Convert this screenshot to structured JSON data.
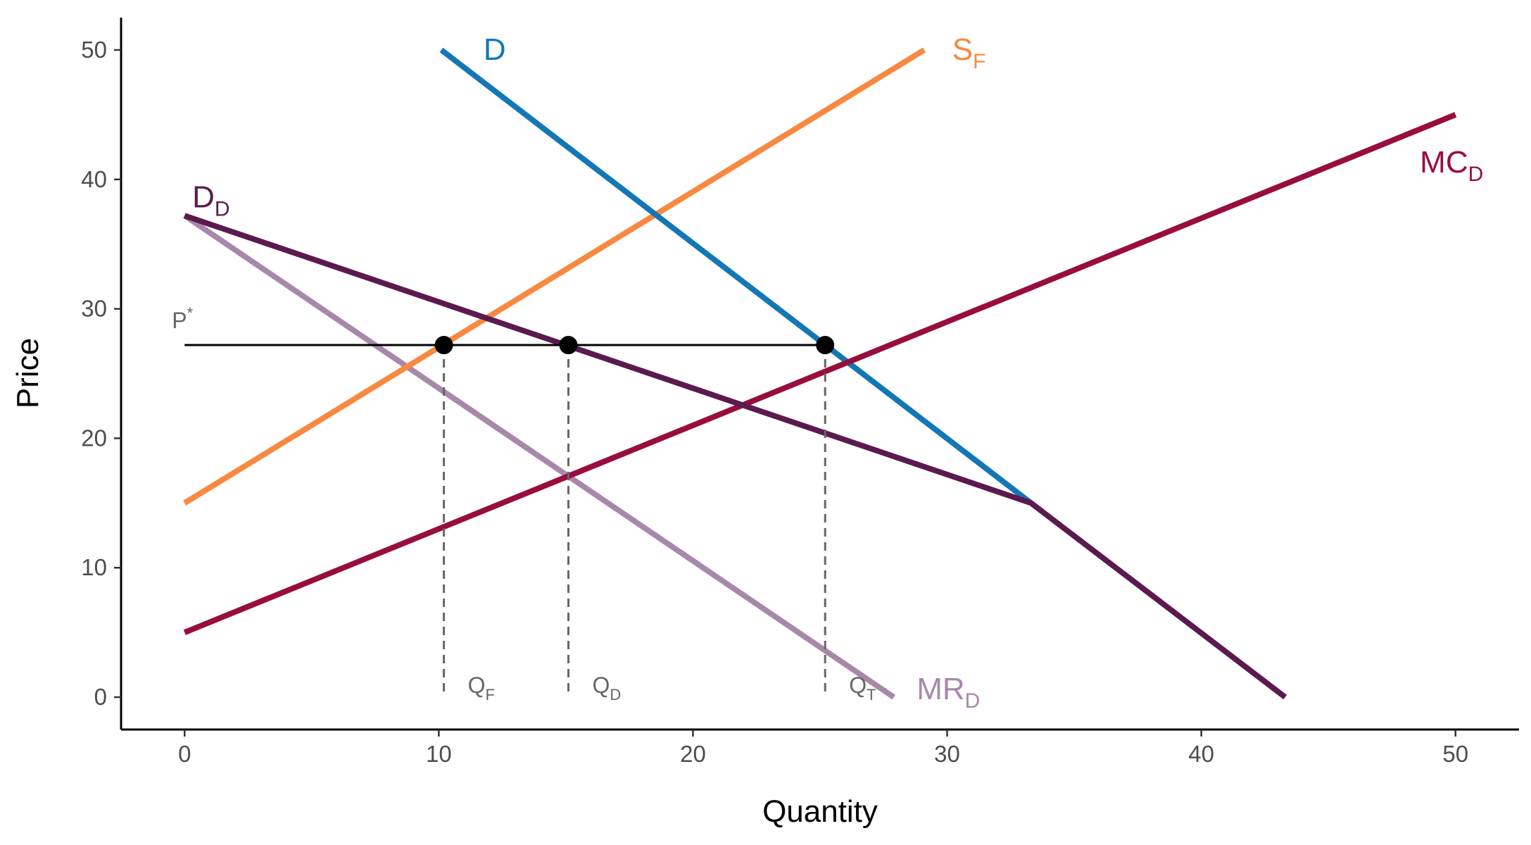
{
  "chart_data": {
    "type": "line",
    "title": "",
    "xlabel": "Quantity",
    "ylabel": "Price",
    "xlim": [
      -2.5,
      52.5
    ],
    "ylim": [
      -2.5,
      52.5
    ],
    "xticks": [
      0,
      10,
      20,
      30,
      40,
      50
    ],
    "yticks": [
      0,
      10,
      20,
      30,
      40,
      50
    ],
    "grid": false,
    "series": [
      {
        "key": "MRD",
        "label": "MR",
        "label_sub": "D",
        "color": "#A888AA",
        "points": [
          [
            0,
            37.2
          ],
          [
            27.9,
            0
          ]
        ]
      },
      {
        "key": "SF",
        "label": "S",
        "label_sub": "F",
        "color": "#F98840",
        "points": [
          [
            0,
            15
          ],
          [
            29.1,
            50
          ]
        ]
      },
      {
        "key": "D",
        "label": "D",
        "label_sub": "",
        "color": "#1377B7",
        "points": [
          [
            10.1,
            50
          ],
          [
            33.3,
            15
          ]
        ]
      },
      {
        "key": "MCD",
        "label": "MC",
        "label_sub": "D",
        "color": "#990D3D",
        "points": [
          [
            0,
            5
          ],
          [
            50,
            45
          ]
        ]
      },
      {
        "key": "DD",
        "label": "D",
        "label_sub": "D",
        "color": "#5B1A4F",
        "points": [
          [
            0,
            37.2
          ],
          [
            33.3,
            15
          ],
          [
            43.3,
            0
          ]
        ]
      }
    ],
    "price_line": {
      "label": "P",
      "label_sup": "*",
      "y": 27.2,
      "x_range": [
        0,
        25.2
      ]
    },
    "equilibrium_points": [
      {
        "x": 10.2,
        "y": 27.2,
        "label": "Q",
        "label_sub": "F"
      },
      {
        "x": 15.1,
        "y": 27.2,
        "label": "Q",
        "label_sub": "D"
      },
      {
        "x": 25.2,
        "y": 27.2,
        "label": "Q",
        "label_sub": "T"
      }
    ]
  }
}
